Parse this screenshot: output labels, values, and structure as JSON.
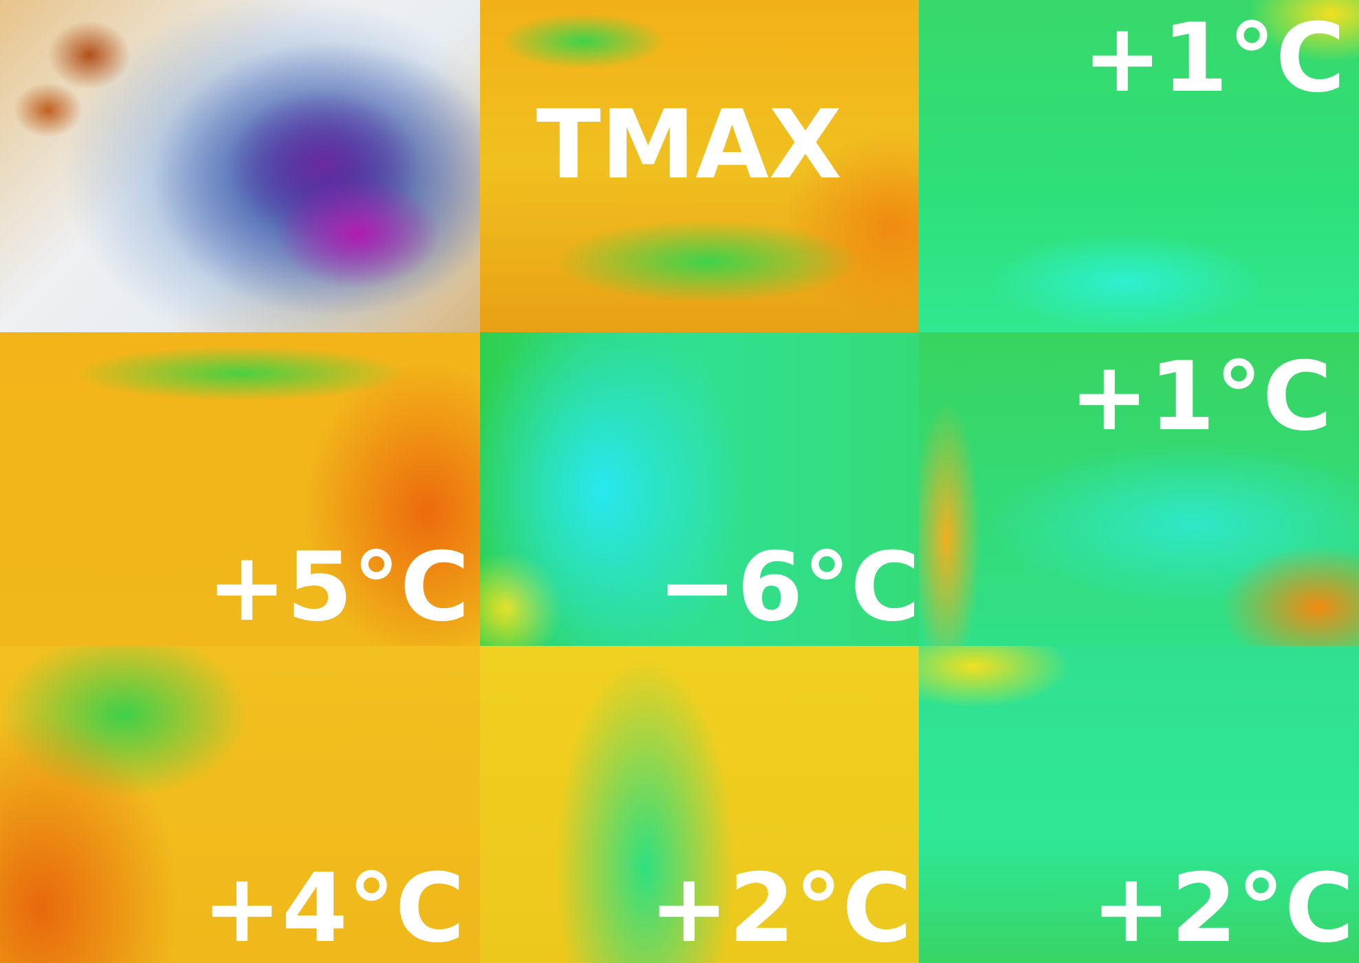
{
  "panels": [
    {
      "label": "TMAX"
    },
    {
      "label": "+1°C"
    },
    {
      "label": "+5°C"
    },
    {
      "label": "−6°C"
    },
    {
      "label": "+1°C"
    },
    {
      "label": "+4°C"
    },
    {
      "label": "+2°C"
    },
    {
      "label": "+2°C"
    }
  ]
}
